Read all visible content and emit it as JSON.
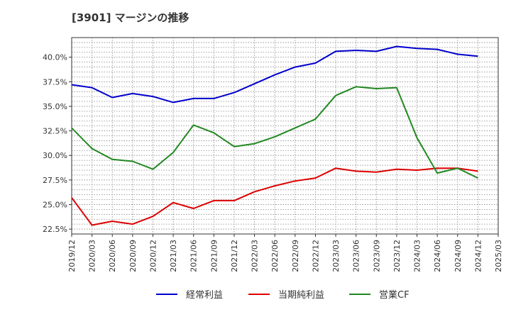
{
  "title": "[3901]  マージンの推移",
  "chart_data": {
    "type": "line",
    "x": [
      "2019/12",
      "2020/03",
      "2020/06",
      "2020/09",
      "2020/12",
      "2021/03",
      "2021/06",
      "2021/09",
      "2021/12",
      "2022/03",
      "2022/06",
      "2022/09",
      "2022/12",
      "2023/03",
      "2023/06",
      "2023/09",
      "2023/12",
      "2024/03",
      "2024/06",
      "2024/09",
      "2024/12",
      "2025/03"
    ],
    "yticks": [
      "22.5%",
      "25.0%",
      "27.5%",
      "30.0%",
      "32.5%",
      "35.0%",
      "37.5%",
      "40.0%"
    ],
    "ylim": [
      22.0,
      42.0
    ],
    "grid": true,
    "legend": "bottom",
    "series": [
      {
        "name": "経常利益",
        "color": "#0000cc",
        "values": [
          37.2,
          36.9,
          35.9,
          36.3,
          36.0,
          35.4,
          35.8,
          35.8,
          36.4,
          37.3,
          38.2,
          39.0,
          39.4,
          40.6,
          40.7,
          40.6,
          41.1,
          40.9,
          40.8,
          40.3,
          40.1,
          null
        ]
      },
      {
        "name": "当期純利益",
        "color": "#dd0000",
        "values": [
          25.7,
          22.9,
          23.3,
          23.0,
          23.8,
          25.2,
          24.6,
          25.4,
          25.4,
          26.3,
          26.9,
          27.4,
          27.7,
          28.7,
          28.4,
          28.3,
          28.6,
          28.5,
          28.7,
          28.7,
          28.4,
          null
        ]
      },
      {
        "name": "営業CF",
        "color": "#228822",
        "values": [
          32.8,
          30.7,
          29.6,
          29.4,
          28.6,
          30.3,
          33.1,
          32.3,
          30.9,
          31.2,
          31.9,
          32.8,
          33.7,
          36.1,
          37.0,
          36.8,
          36.9,
          31.8,
          28.2,
          28.7,
          27.7,
          null
        ]
      }
    ]
  }
}
